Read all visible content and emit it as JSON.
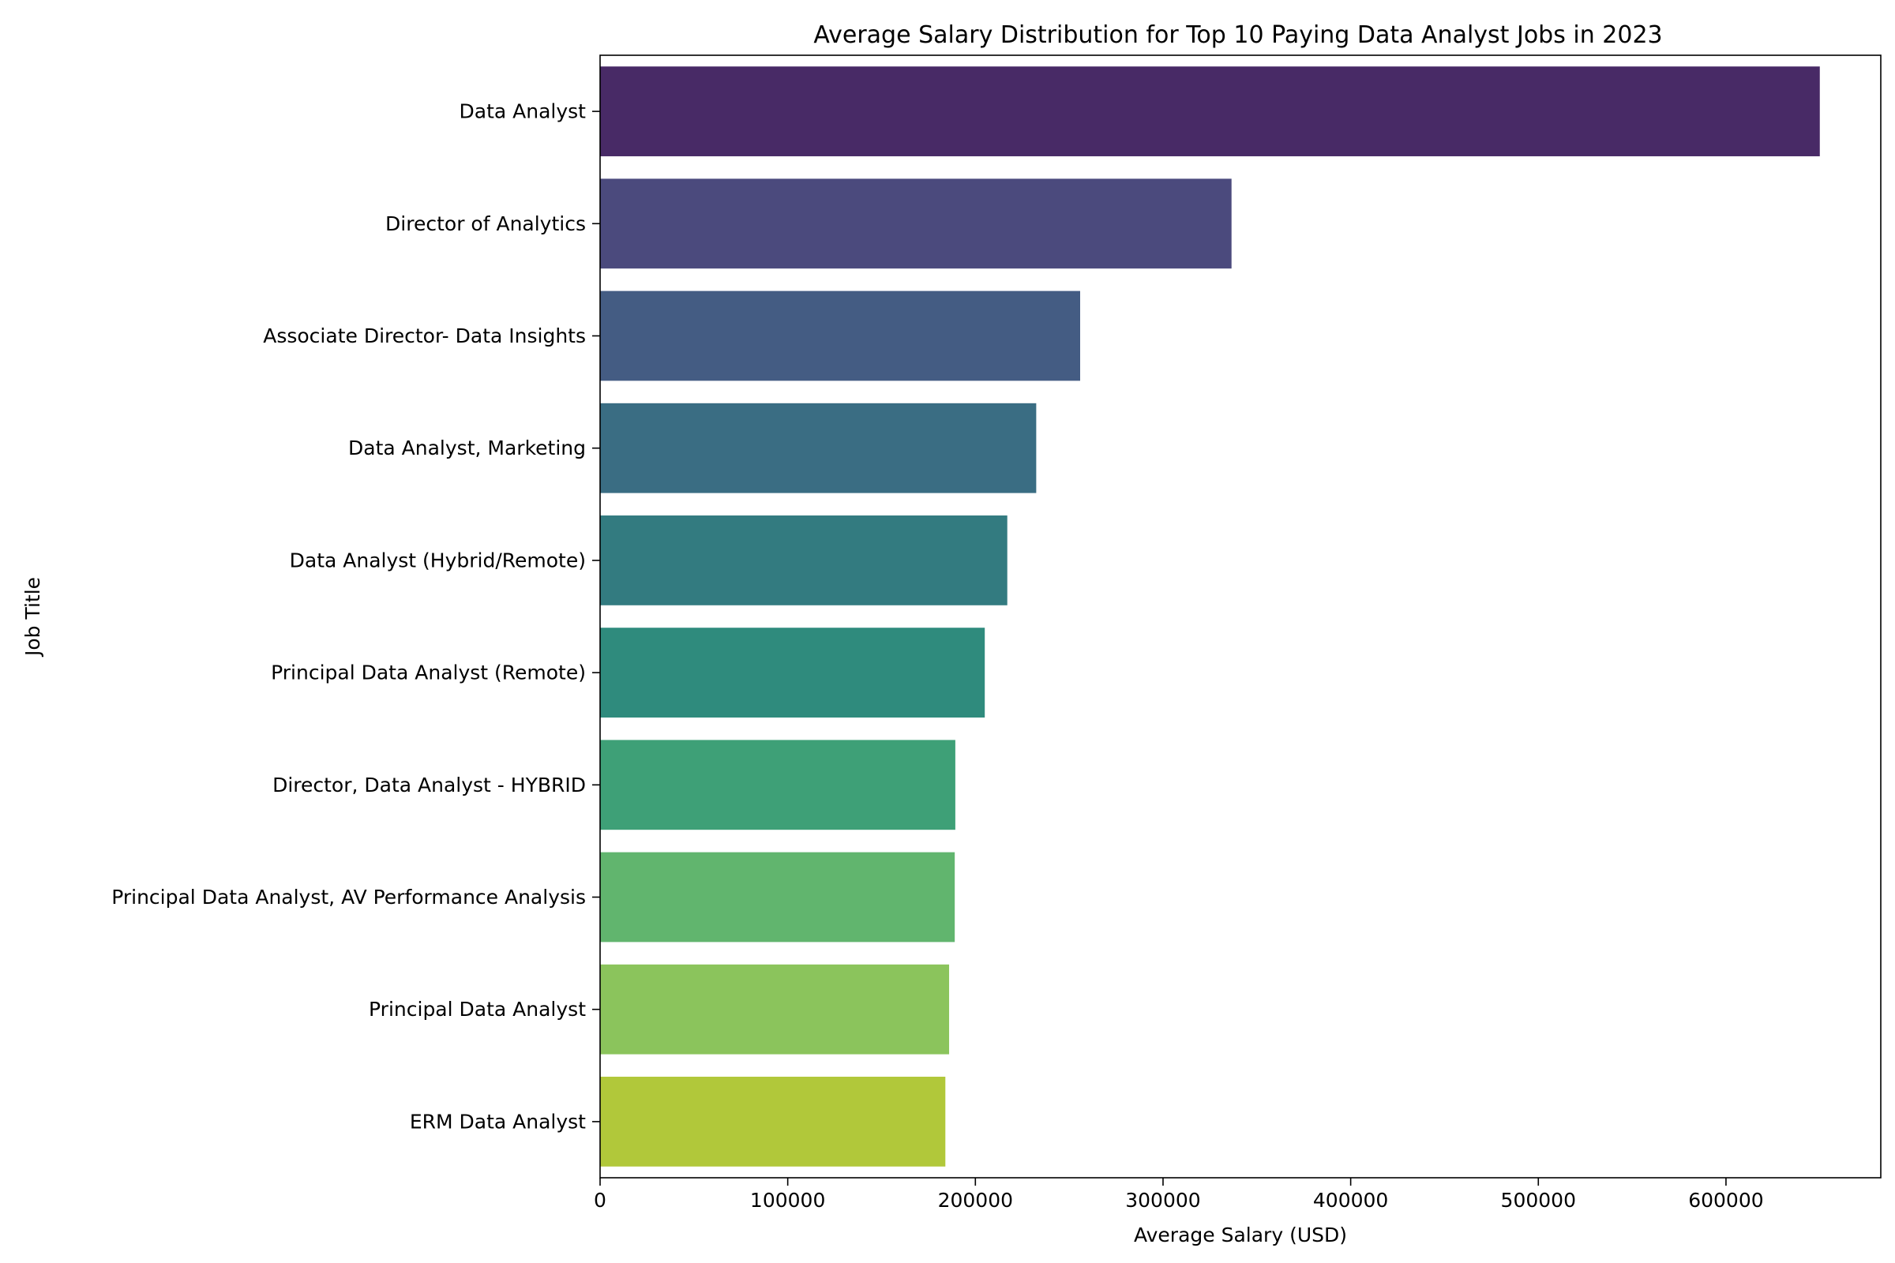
{
  "chart_data": {
    "type": "bar",
    "orientation": "horizontal",
    "title": "Average Salary Distribution for Top 10 Paying Data Analyst Jobs in 2023",
    "xlabel": "Average Salary (USD)",
    "ylabel": "Job Title",
    "xlim": [
      0,
      682500
    ],
    "xticks": [
      0,
      100000,
      200000,
      300000,
      400000,
      500000,
      600000
    ],
    "grid": false,
    "categories": [
      "Data Analyst",
      "Director of Analytics",
      "Associate Director- Data Insights",
      "Data Analyst, Marketing",
      "Data Analyst (Hybrid/Remote)",
      "Principal Data Analyst (Remote)",
      "Director, Data Analyst - HYBRID",
      "Principal Data Analyst, AV Performance Analysis",
      "Principal Data Analyst",
      "ERM Data Analyst"
    ],
    "values": [
      650000,
      336500,
      255830,
      232423,
      217000,
      205000,
      189309,
      189000,
      186000,
      184000
    ],
    "colors": [
      "#482a66",
      "#4b4a7d",
      "#445c83",
      "#3a6d83",
      "#337b80",
      "#2f8b7d",
      "#3ea077",
      "#61b56e",
      "#8bc45c",
      "#b1c83a"
    ]
  }
}
